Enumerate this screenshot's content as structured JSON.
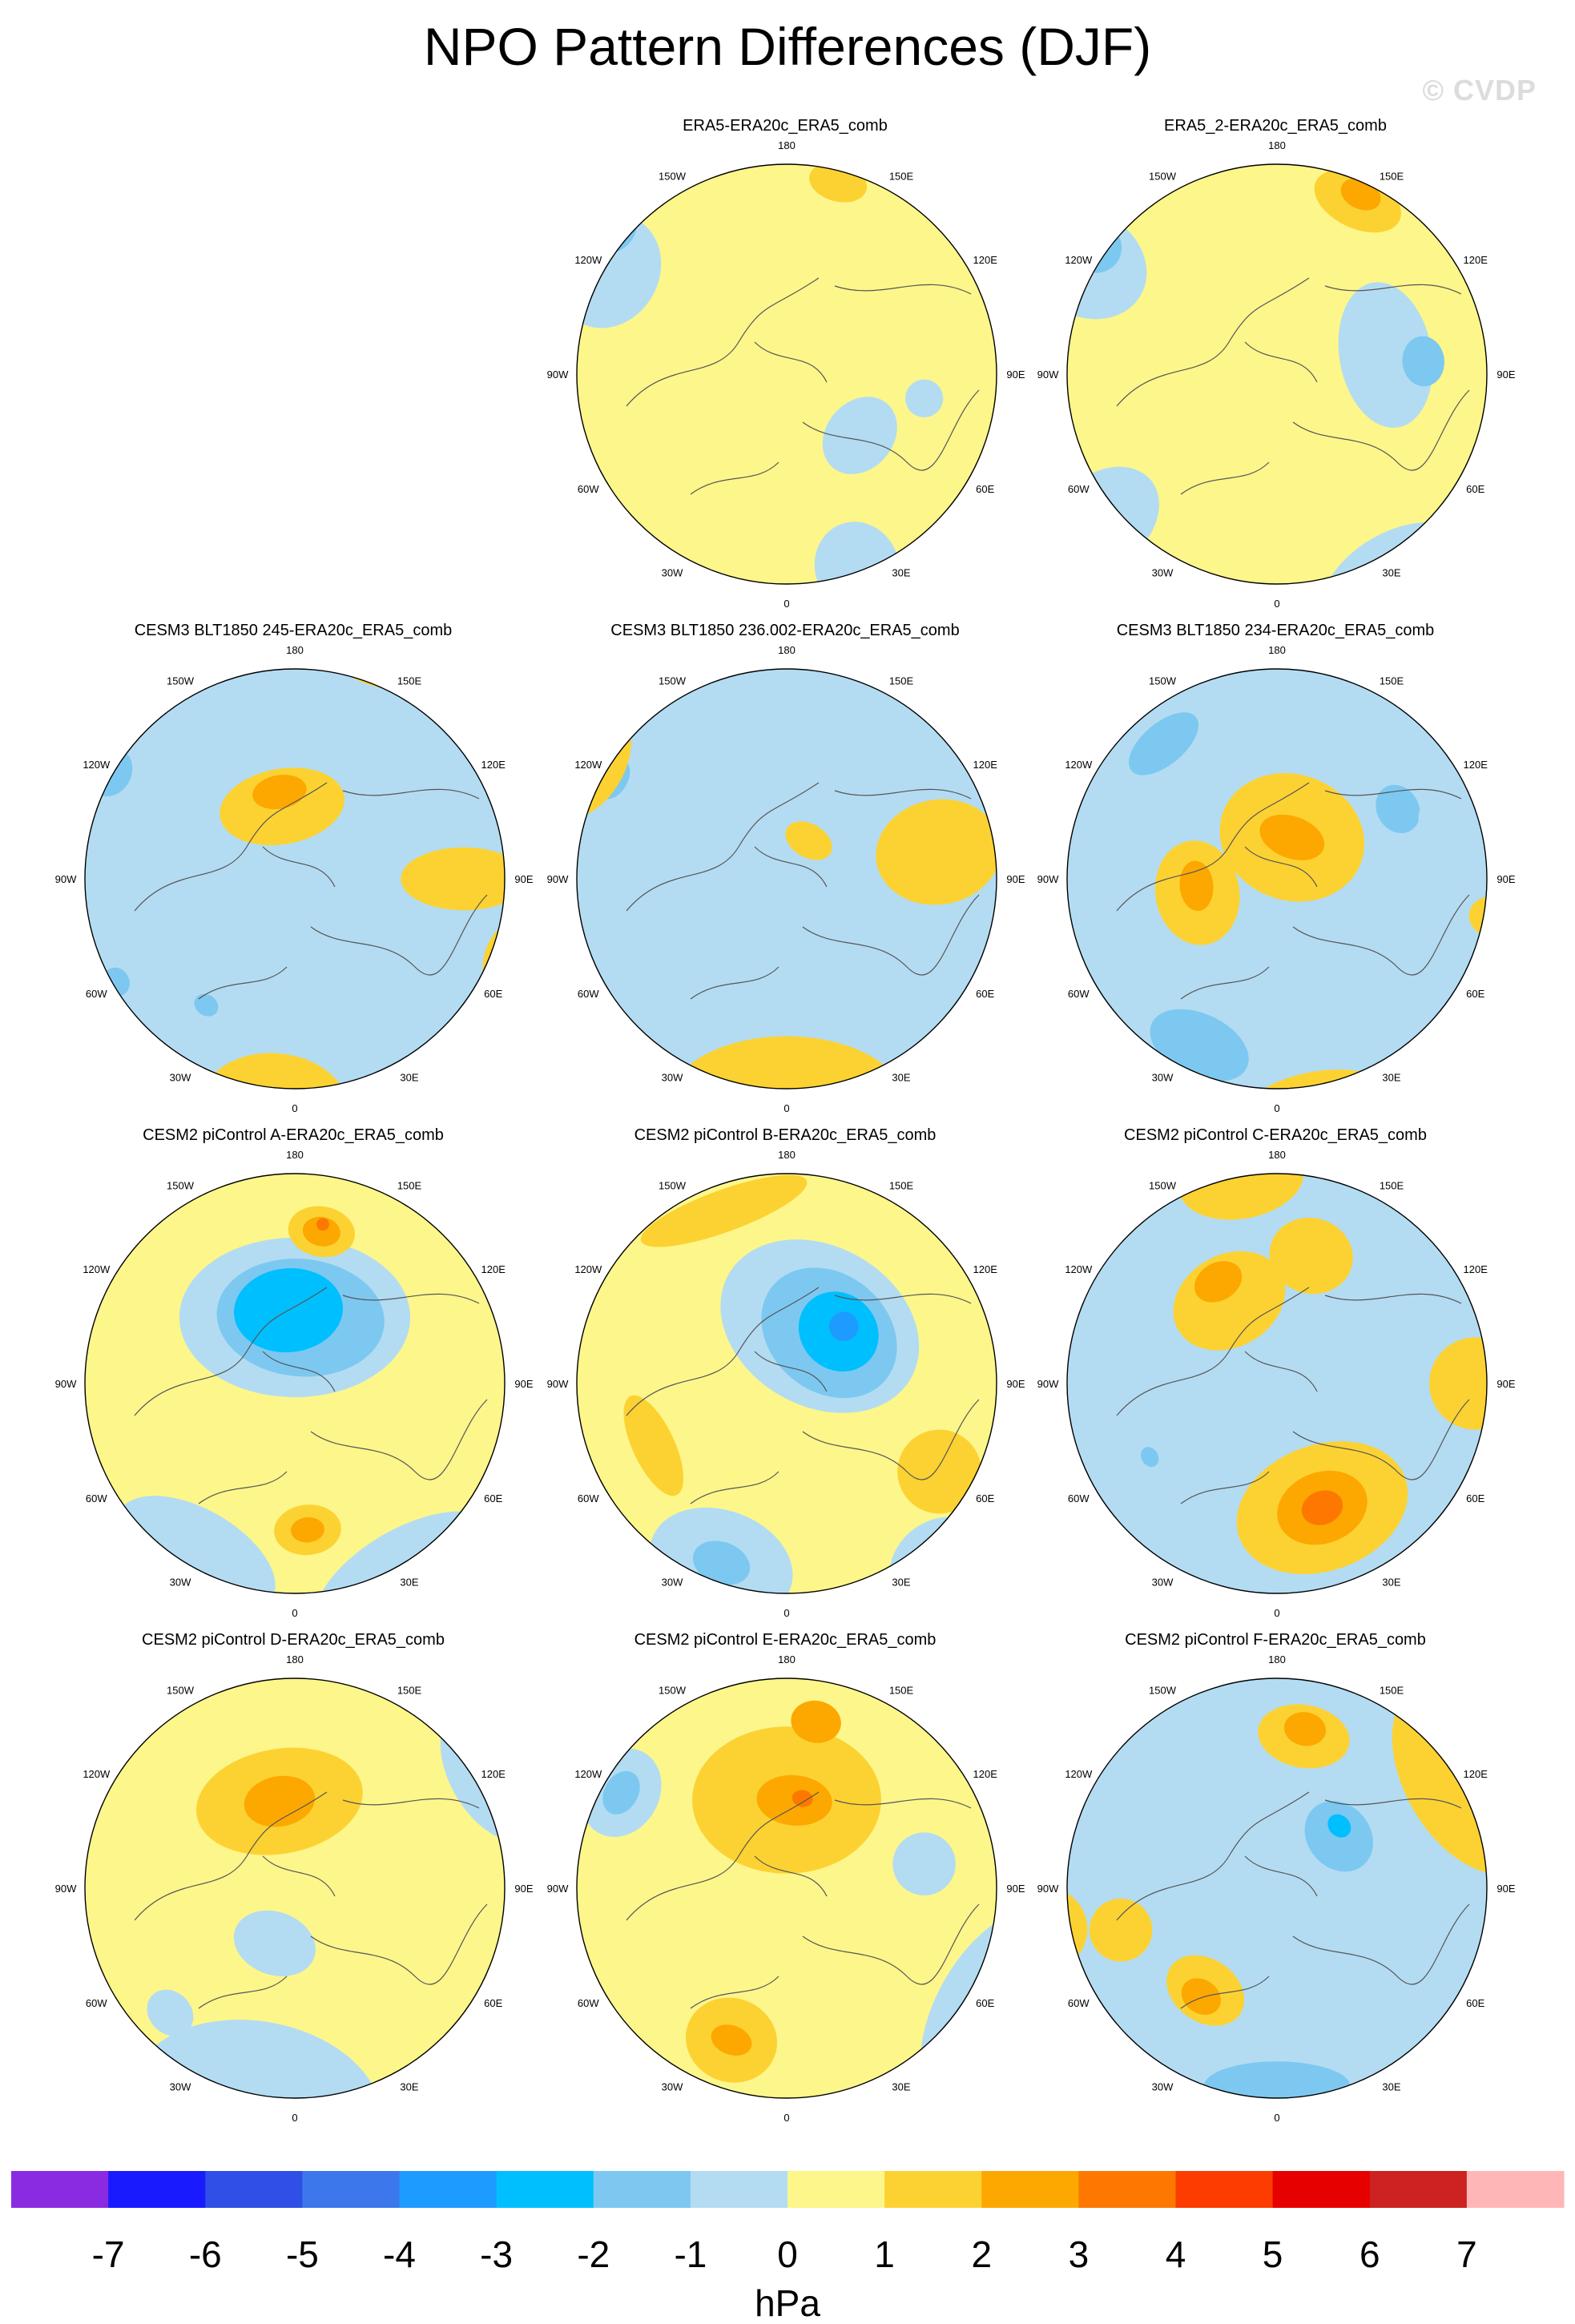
{
  "title": "NPO Pattern Differences (DJF)",
  "watermark": "© CVDP",
  "chart_data": {
    "type": "heatmap",
    "title": "NPO Pattern Differences (DJF)",
    "projection": "north polar stereographic",
    "lon_labels": [
      "180",
      "150E",
      "120E",
      "90E",
      "60E",
      "30E",
      "0",
      "30W",
      "60W",
      "90W",
      "120W",
      "150W"
    ],
    "colorbar": {
      "unit": "hPa",
      "levels": [
        -7,
        -6,
        -5,
        -4,
        -3,
        -2,
        -1,
        0,
        1,
        2,
        3,
        4,
        5,
        6,
        7
      ],
      "tick_labels": [
        "-7",
        "-6",
        "-5",
        "-4",
        "-3",
        "-2",
        "-1",
        "0",
        "1",
        "2",
        "3",
        "4",
        "5",
        "6",
        "7"
      ],
      "colors": [
        "#8a2be2",
        "#1a1aff",
        "#2f4fe6",
        "#3c78ec",
        "#1e9bff",
        "#00bfff",
        "#7dc8f0",
        "#b3dcf2",
        "#fdf68b",
        "#fcd232",
        "#fca800",
        "#fc7800",
        "#fc3c00",
        "#e60000",
        "#cc2222",
        "#ffb6b6"
      ]
    },
    "panels": [
      {
        "title": "ERA5-ERA20c_ERA5_comb",
        "base": 0.5,
        "blobs": [
          [
            -1,
            1.4,
            300,
            0.28,
            0.24
          ],
          [
            -2,
            1.55,
            310,
            0.13,
            0.11
          ],
          [
            -1,
            0.65,
            130,
            0.2,
            0.16
          ],
          [
            -1,
            1.4,
            160,
            0.2,
            0.22
          ],
          [
            1,
            1.35,
            15,
            0.14,
            0.09
          ],
          [
            1,
            1.5,
            20,
            0.06,
            0.05
          ],
          [
            -1,
            0.95,
            100,
            0.09,
            0.09
          ]
        ]
      },
      {
        "title": "ERA5_2-ERA20c_ERA5_comb",
        "base": 0.5,
        "blobs": [
          [
            -1,
            1.5,
            300,
            0.25,
            0.3
          ],
          [
            -2,
            1.5,
            305,
            0.12,
            0.12
          ],
          [
            -1,
            0.75,
            80,
            0.35,
            0.22
          ],
          [
            -2,
            1.0,
            85,
            0.12,
            0.1
          ],
          [
            1,
            1.3,
            25,
            0.22,
            0.13
          ],
          [
            2,
            1.35,
            25,
            0.1,
            0.07
          ],
          [
            -1,
            1.65,
            150,
            0.4,
            0.25
          ],
          [
            -1,
            1.55,
            230,
            0.22,
            0.3
          ]
        ]
      },
      {
        "title": "CESM3 BLT1850 245-ERA20c_ERA5_comb",
        "base": -0.5,
        "blobs": [
          [
            1,
            1.55,
            185,
            0.35,
            0.25
          ],
          [
            1,
            1.15,
            90,
            0.15,
            0.3
          ],
          [
            1,
            0.5,
            350,
            0.3,
            0.18
          ],
          [
            2,
            0.6,
            350,
            0.13,
            0.08
          ],
          [
            -2,
            1.45,
            300,
            0.12,
            0.1
          ],
          [
            -1,
            1.35,
            240,
            0.3,
            0.2
          ],
          [
            -2,
            1.4,
            240,
            0.07,
            0.06
          ],
          [
            -2,
            1.05,
            215,
            0.06,
            0.05
          ],
          [
            1,
            1.7,
            20,
            0.35,
            0.2
          ],
          [
            1,
            1.6,
            110,
            0.2,
            0.15
          ]
        ]
      },
      {
        "title": "CESM3 BLT1850 236.002-ERA20c_ERA5_comb",
        "base": -0.5,
        "blobs": [
          [
            1,
            1.5,
            180,
            0.55,
            0.3
          ],
          [
            1,
            1.05,
            80,
            0.25,
            0.3
          ],
          [
            1,
            0.3,
            30,
            0.12,
            0.08
          ],
          [
            -2,
            1.35,
            300,
            0.1,
            0.06
          ],
          [
            -1,
            1.1,
            320,
            0.18,
            0.14
          ],
          [
            1,
            1.6,
            300,
            0.3,
            0.2
          ]
        ]
      },
      {
        "title": "CESM3 BLT1850 234-ERA20c_ERA5_comb",
        "base": -0.5,
        "blobs": [
          [
            1,
            0.55,
            260,
            0.25,
            0.2
          ],
          [
            2,
            0.55,
            265,
            0.12,
            0.08
          ],
          [
            1,
            0.3,
            20,
            0.35,
            0.3
          ],
          [
            2,
            0.3,
            20,
            0.16,
            0.1
          ],
          [
            -3,
            1.2,
            200,
            0.12,
            0.1
          ],
          [
            -2,
            1.25,
            205,
            0.25,
            0.15
          ],
          [
            -2,
            1.2,
            320,
            0.2,
            0.1
          ],
          [
            -2,
            0.95,
            60,
            0.12,
            0.1
          ],
          [
            1,
            1.55,
            170,
            0.35,
            0.15
          ],
          [
            1,
            1.5,
            100,
            0.1,
            0.12
          ],
          [
            -1,
            1.15,
            70,
            0.1,
            0.08
          ]
        ]
      },
      {
        "title": "CESM2 piControl A-ERA20c_ERA5_comb",
        "base": 0.5,
        "blobs": [
          [
            -1,
            0.45,
            0,
            0.55,
            0.38
          ],
          [
            -2,
            0.45,
            5,
            0.4,
            0.28
          ],
          [
            -3,
            0.5,
            355,
            0.26,
            0.2
          ],
          [
            -1,
            1.35,
            210,
            0.42,
            0.22
          ],
          [
            -1,
            1.55,
            150,
            0.5,
            0.25
          ],
          [
            1,
            1.0,
            175,
            0.16,
            0.12
          ],
          [
            2,
            1.0,
            175,
            0.08,
            0.06
          ],
          [
            1,
            1.05,
            10,
            0.16,
            0.12
          ],
          [
            2,
            1.05,
            10,
            0.09,
            0.07
          ],
          [
            3,
            1.1,
            10,
            0.03,
            0.03
          ]
        ]
      },
      {
        "title": "CESM2 piControl B-ERA20c_ERA5_comb",
        "base": 0.5,
        "blobs": [
          [
            -1,
            0.45,
            30,
            0.5,
            0.38
          ],
          [
            -2,
            0.45,
            40,
            0.35,
            0.28
          ],
          [
            -3,
            0.5,
            45,
            0.2,
            0.18
          ],
          [
            -4,
            0.55,
            45,
            0.07,
            0.07
          ],
          [
            -1,
            1.3,
            200,
            0.35,
            0.25
          ],
          [
            -2,
            1.3,
            200,
            0.14,
            0.1
          ],
          [
            1,
            1.0,
            245,
            0.26,
            0.1
          ],
          [
            1,
            1.25,
            340,
            0.42,
            0.1
          ],
          [
            -1,
            1.6,
            140,
            0.25,
            0.2
          ],
          [
            1,
            1.2,
            120,
            0.2,
            0.2
          ]
        ]
      },
      {
        "title": "CESM2 piControl C-ERA20c_ERA5_comb",
        "base": -0.5,
        "blobs": [
          [
            1,
            0.9,
            160,
            0.42,
            0.3
          ],
          [
            2,
            0.9,
            160,
            0.22,
            0.17
          ],
          [
            3,
            0.9,
            160,
            0.1,
            0.08
          ],
          [
            1,
            0.65,
            330,
            0.28,
            0.22
          ],
          [
            2,
            0.8,
            330,
            0.12,
            0.09
          ],
          [
            1,
            0.9,
            15,
            0.2,
            0.18
          ],
          [
            -1,
            1.0,
            245,
            0.12,
            0.09
          ],
          [
            -2,
            1.0,
            240,
            0.05,
            0.04
          ],
          [
            1,
            1.35,
            90,
            0.22,
            0.22
          ],
          [
            1,
            1.4,
            350,
            0.3,
            0.18
          ]
        ]
      },
      {
        "title": "CESM2 piControl D-ERA20c_ERA5_comb",
        "base": 0.5,
        "blobs": [
          [
            -1,
            1.5,
            190,
            0.6,
            0.4
          ],
          [
            -1,
            1.2,
            225,
            0.12,
            0.1
          ],
          [
            1,
            0.6,
            350,
            0.4,
            0.25
          ],
          [
            2,
            0.6,
            350,
            0.17,
            0.12
          ],
          [
            -1,
            1.55,
            60,
            0.35,
            0.2
          ],
          [
            -1,
            0.4,
            200,
            0.2,
            0.15
          ]
        ]
      },
      {
        "title": "CESM2 piControl E-ERA20c_ERA5_comb",
        "base": 0.5,
        "blobs": [
          [
            1,
            0.6,
            0,
            0.45,
            0.35
          ],
          [
            2,
            0.6,
            5,
            0.18,
            0.12
          ],
          [
            3,
            0.62,
            10,
            0.05,
            0.04
          ],
          [
            1,
            1.1,
            200,
            0.22,
            0.2
          ],
          [
            2,
            1.1,
            200,
            0.1,
            0.07
          ],
          [
            2,
            1.15,
            10,
            0.12,
            0.1
          ],
          [
            -1,
            1.3,
            300,
            0.22,
            0.18
          ],
          [
            -2,
            1.3,
            300,
            0.11,
            0.08
          ],
          [
            -1,
            1.6,
            120,
            0.5,
            0.25
          ],
          [
            -1,
            0.95,
            80,
            0.15,
            0.15
          ]
        ]
      },
      {
        "title": "CESM2 piControl F-ERA20c_ERA5_comb",
        "base": -0.5,
        "blobs": [
          [
            1,
            1.5,
            60,
            0.5,
            0.3
          ],
          [
            1,
            1.05,
            10,
            0.22,
            0.15
          ],
          [
            2,
            1.1,
            10,
            0.1,
            0.08
          ],
          [
            1,
            1.1,
            255,
            0.15,
            0.15
          ],
          [
            1,
            0.85,
            215,
            0.2,
            0.15
          ],
          [
            2,
            0.9,
            215,
            0.1,
            0.08
          ],
          [
            -2,
            1.35,
            180,
            0.35,
            0.12
          ],
          [
            -2,
            0.55,
            50,
            0.18,
            0.15
          ],
          [
            -3,
            0.6,
            45,
            0.06,
            0.05
          ],
          [
            1,
            1.6,
            260,
            0.2,
            0.2
          ]
        ]
      }
    ]
  }
}
